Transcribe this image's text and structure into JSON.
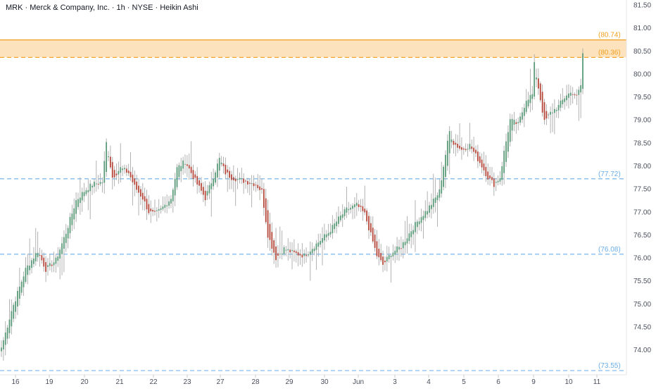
{
  "chart_data": {
    "type": "candlestick",
    "title": "MRK · Merck & Company, Inc. · 1h · NYSE · Heikin Ashi",
    "ylim": [
      73.55,
      81.5
    ],
    "y_ticks": [
      "74.00",
      "74.50",
      "75.00",
      "75.50",
      "76.00",
      "76.50",
      "77.00",
      "77.50",
      "78.00",
      "78.50",
      "79.00",
      "79.50",
      "80.00",
      "80.50",
      "81.00",
      "81.50"
    ],
    "x_tick_labels": [
      "16",
      "19",
      "20",
      "21",
      "22",
      "23",
      "27",
      "28",
      "29",
      "30",
      "Jun",
      "3",
      "4",
      "5",
      "6",
      "9",
      "10",
      "11"
    ],
    "levels": [
      {
        "value": 80.74,
        "label": "(80.74)",
        "style": "solid",
        "color": "#f0a020"
      },
      {
        "value": 80.36,
        "label": "(80.36)",
        "style": "dashed",
        "color": "#f0a020"
      },
      {
        "value": 77.72,
        "label": "(77.72)",
        "style": "dashed",
        "color": "#6aaee8"
      },
      {
        "value": 76.08,
        "label": "(76.08)",
        "style": "dashed",
        "color": "#6aaee8"
      },
      {
        "value": 73.55,
        "label": "(73.55)",
        "style": "dashed",
        "color": "#6aaee8"
      }
    ],
    "zone": {
      "from": 80.36,
      "to": 80.74,
      "color": "#fde3bd"
    },
    "colors": {
      "up": "#5a9a78",
      "down": "#b5473a",
      "wick": "#aaaaaa"
    },
    "anchors": [
      [
        0,
        74.05
      ],
      [
        5,
        74.85
      ],
      [
        12,
        75.75
      ],
      [
        18,
        76.15
      ],
      [
        22,
        75.75
      ],
      [
        27,
        75.95
      ],
      [
        32,
        76.55
      ],
      [
        37,
        77.25
      ],
      [
        41,
        77.45
      ],
      [
        45,
        77.6
      ],
      [
        50,
        77.65
      ],
      [
        52,
        78.5
      ],
      [
        55,
        77.75
      ],
      [
        59,
        77.95
      ],
      [
        63,
        77.85
      ],
      [
        66,
        77.55
      ],
      [
        70,
        77.3
      ],
      [
        73,
        77.0
      ],
      [
        76,
        76.95
      ],
      [
        79,
        77.05
      ],
      [
        84,
        77.3
      ],
      [
        87,
        77.95
      ],
      [
        91,
        78.1
      ],
      [
        94,
        77.85
      ],
      [
        97,
        77.6
      ],
      [
        101,
        77.3
      ],
      [
        104,
        77.65
      ],
      [
        108,
        78.15
      ],
      [
        111,
        77.85
      ],
      [
        114,
        77.75
      ],
      [
        118,
        77.7
      ],
      [
        122,
        77.65
      ],
      [
        126,
        77.6
      ],
      [
        129,
        77.45
      ],
      [
        132,
        76.5
      ],
      [
        136,
        76.0
      ],
      [
        140,
        76.2
      ],
      [
        145,
        76.1
      ],
      [
        150,
        76.05
      ],
      [
        156,
        76.3
      ],
      [
        162,
        76.55
      ],
      [
        167,
        76.85
      ],
      [
        171,
        77.05
      ],
      [
        176,
        77.15
      ],
      [
        180,
        76.95
      ],
      [
        183,
        76.5
      ],
      [
        186,
        76.05
      ],
      [
        189,
        75.85
      ],
      [
        193,
        76.1
      ],
      [
        198,
        76.25
      ],
      [
        203,
        76.6
      ],
      [
        207,
        76.85
      ],
      [
        211,
        77.05
      ],
      [
        215,
        77.3
      ],
      [
        217,
        77.45
      ],
      [
        219,
        78.0
      ],
      [
        222,
        78.75
      ],
      [
        224,
        78.5
      ],
      [
        228,
        78.35
      ],
      [
        232,
        78.45
      ],
      [
        234,
        78.3
      ],
      [
        238,
        78.0
      ],
      [
        241,
        77.75
      ],
      [
        244,
        77.6
      ],
      [
        247,
        77.75
      ],
      [
        249,
        78.3
      ],
      [
        252,
        79.0
      ],
      [
        256,
        78.9
      ],
      [
        260,
        79.45
      ],
      [
        263,
        79.55
      ],
      [
        264,
        80.2
      ],
      [
        266,
        79.7
      ],
      [
        269,
        78.95
      ],
      [
        272,
        79.15
      ],
      [
        276,
        79.3
      ],
      [
        280,
        79.55
      ],
      [
        283,
        79.6
      ],
      [
        285,
        79.5
      ],
      [
        287,
        79.75
      ],
      [
        288,
        80.45
      ]
    ]
  }
}
